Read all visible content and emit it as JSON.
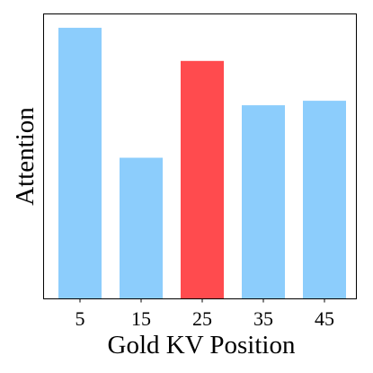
{
  "chart_data": {
    "type": "bar",
    "title": "",
    "xlabel": "Gold KV Position",
    "ylabel": "Attention",
    "categories": [
      "5",
      "15",
      "25",
      "35",
      "45"
    ],
    "values": [
      0.98,
      0.51,
      0.86,
      0.7,
      0.716
    ],
    "ylim": [
      0,
      1.03
    ],
    "y_ticks_shown": false,
    "grid": false,
    "legend": "none",
    "colors": {
      "default": "#8ccdfc",
      "highlight": "#ff4b4e"
    },
    "highlight_index": 2
  }
}
